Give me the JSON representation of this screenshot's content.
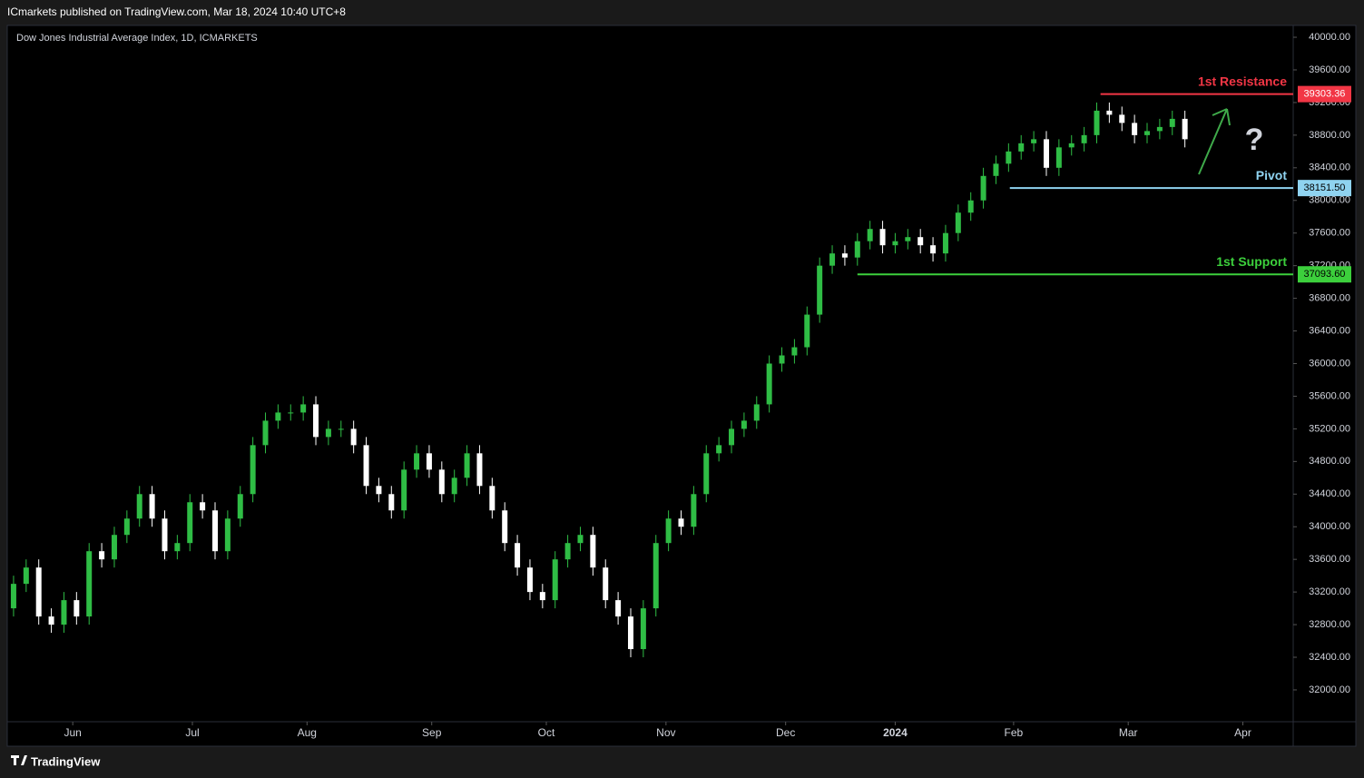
{
  "header": "ICmarkets published on TradingView.com, Mar 18, 2024 10:40 UTC+8",
  "footer": "TradingView",
  "chart_data": {
    "type": "candlestick",
    "title": "Dow Jones Industrial Average Index, 1D, ICMARKETS",
    "up_color": "#2fbd45",
    "down_color": "#ffffff",
    "grid": false,
    "xlim": [
      -0.5,
      101.6
    ],
    "xticks": [
      {
        "value": 4.7,
        "label": "Jun"
      },
      {
        "value": 14.2,
        "label": "Jul"
      },
      {
        "value": 23.3,
        "label": "Aug"
      },
      {
        "value": 33.2,
        "label": "Sep"
      },
      {
        "value": 42.3,
        "label": "Oct"
      },
      {
        "value": 51.8,
        "label": "Nov"
      },
      {
        "value": 61.3,
        "label": "Dec"
      },
      {
        "value": 70,
        "label": "2024"
      },
      {
        "value": 79.4,
        "label": "Feb"
      },
      {
        "value": 88.5,
        "label": "Mar"
      },
      {
        "value": 97.6,
        "label": "Apr"
      }
    ],
    "ylim": [
      31610,
      40145
    ],
    "yticks": [
      {
        "value": 32000,
        "label": "32000.00"
      },
      {
        "value": 32400,
        "label": "32400.00"
      },
      {
        "value": 32800,
        "label": "32800.00"
      },
      {
        "value": 33200,
        "label": "33200.00"
      },
      {
        "value": 33600,
        "label": "33600.00"
      },
      {
        "value": 34000,
        "label": "34000.00"
      },
      {
        "value": 34400,
        "label": "34400.00"
      },
      {
        "value": 34800,
        "label": "34800.00"
      },
      {
        "value": 35200,
        "label": "35200.00"
      },
      {
        "value": 35600,
        "label": "35600.00"
      },
      {
        "value": 36000,
        "label": "36000.00"
      },
      {
        "value": 36400,
        "label": "36400.00"
      },
      {
        "value": 36800,
        "label": "36800.00"
      },
      {
        "value": 37200,
        "label": "37200.00"
      },
      {
        "value": 37600,
        "label": "37600.00"
      },
      {
        "value": 38000,
        "label": "38000.00"
      },
      {
        "value": 38400,
        "label": "38400.00"
      },
      {
        "value": 38800,
        "label": "38800.00"
      },
      {
        "value": 39200,
        "label": "39200.00"
      },
      {
        "value": 39600,
        "label": "39600.00"
      },
      {
        "value": 40000,
        "label": "40000.00"
      }
    ],
    "open": [
      33000,
      33300,
      33500,
      32900,
      32800,
      33100,
      32900,
      33700,
      33600,
      33900,
      34100,
      34400,
      34100,
      33700,
      33800,
      34300,
      34200,
      33700,
      34100,
      34400,
      35000,
      35300,
      35400,
      35400,
      35500,
      35100,
      35200,
      35200,
      35000,
      34500,
      34400,
      34200,
      34700,
      34900,
      34700,
      34400,
      34600,
      34900,
      34500,
      34200,
      33800,
      33500,
      33200,
      33100,
      33600,
      33800,
      33900,
      33500,
      33100,
      32900,
      32500,
      33000,
      33800,
      34100,
      34000,
      34400,
      34900,
      35000,
      35200,
      35300,
      35500,
      36000,
      36100,
      36200,
      36600,
      37200,
      37350,
      37300,
      37500,
      37650,
      37450,
      37500,
      37550,
      37450,
      37350,
      37600,
      37850,
      38000,
      38300,
      38450,
      38600,
      38700,
      38750,
      38400,
      38650,
      38700,
      38800,
      39100,
      39050,
      38950,
      38800,
      38850,
      38900,
      39000
    ],
    "high": [
      33400,
      33600,
      33600,
      33000,
      33200,
      33200,
      33800,
      33800,
      34000,
      34200,
      34500,
      34500,
      34200,
      33900,
      34400,
      34400,
      34300,
      34200,
      34500,
      35100,
      35400,
      35500,
      35500,
      35600,
      35600,
      35300,
      35300,
      35300,
      35100,
      34600,
      34500,
      34800,
      35000,
      35000,
      34800,
      34700,
      35000,
      35000,
      34600,
      34300,
      33900,
      33600,
      33300,
      33700,
      33900,
      34000,
      34000,
      33600,
      33200,
      33000,
      33100,
      33900,
      34200,
      34200,
      34500,
      35000,
      35100,
      35300,
      35400,
      35600,
      36100,
      36200,
      36300,
      36700,
      37300,
      37450,
      37450,
      37600,
      37750,
      37750,
      37600,
      37650,
      37650,
      37550,
      37700,
      37950,
      38100,
      38400,
      38550,
      38700,
      38800,
      38850,
      38850,
      38750,
      38800,
      38900,
      39200,
      39200,
      39150,
      39050,
      38950,
      39000,
      39100,
      39100
    ],
    "low": [
      32900,
      33200,
      32800,
      32700,
      32700,
      32800,
      32800,
      33500,
      33500,
      33800,
      34000,
      34000,
      33600,
      33600,
      33700,
      34100,
      33600,
      33600,
      34000,
      34300,
      34900,
      35200,
      35300,
      35300,
      35000,
      35000,
      35100,
      34900,
      34400,
      34300,
      34100,
      34100,
      34600,
      34600,
      34300,
      34300,
      34500,
      34400,
      34100,
      33700,
      33400,
      33100,
      33000,
      33000,
      33500,
      33700,
      33400,
      33000,
      32800,
      32400,
      32400,
      32900,
      33700,
      33900,
      33900,
      34300,
      34800,
      34900,
      35100,
      35200,
      35400,
      35900,
      36000,
      36100,
      36500,
      37100,
      37200,
      37200,
      37400,
      37350,
      37350,
      37400,
      37350,
      37250,
      37250,
      37500,
      37750,
      37900,
      38200,
      38350,
      38500,
      38600,
      38300,
      38300,
      38550,
      38600,
      38700,
      38950,
      38850,
      38700,
      38700,
      38750,
      38800,
      38650
    ],
    "close": [
      33300,
      33500,
      32900,
      32800,
      33100,
      32900,
      33700,
      33600,
      33900,
      34100,
      34400,
      34100,
      33700,
      33800,
      34300,
      34200,
      33700,
      34100,
      34400,
      35000,
      35300,
      35400,
      35400,
      35500,
      35100,
      35200,
      35200,
      35000,
      34500,
      34400,
      34200,
      34700,
      34900,
      34700,
      34400,
      34600,
      34900,
      34500,
      34200,
      33800,
      33500,
      33200,
      33100,
      33600,
      33800,
      33900,
      33500,
      33100,
      32900,
      32500,
      33000,
      33800,
      34100,
      34000,
      34400,
      34900,
      35000,
      35200,
      35300,
      35500,
      36000,
      36100,
      36200,
      36600,
      37200,
      37350,
      37300,
      37500,
      37650,
      37450,
      37500,
      37550,
      37450,
      37350,
      37600,
      37850,
      38000,
      38300,
      38450,
      38600,
      38700,
      38750,
      38400,
      38650,
      38700,
      38800,
      39100,
      39050,
      38950,
      38800,
      38850,
      38900,
      39000,
      38750
    ],
    "levels": [
      {
        "name": "1st Resistance",
        "value": 39303.36,
        "value_label": "39303.36",
        "color": "#f23645",
        "start": 86.3
      },
      {
        "name": "Pivot",
        "value": 38151.5,
        "value_label": "38151.50",
        "color": "#8fd3f0",
        "start": 79.1
      },
      {
        "name": "1st Support",
        "value": 37093.6,
        "value_label": "37093.60",
        "color": "#3ccf3c",
        "start": 67
      }
    ],
    "annotation": "?"
  }
}
